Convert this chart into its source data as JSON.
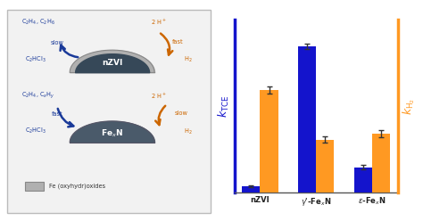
{
  "blue_values": [
    0.04,
    1.0,
    0.17
  ],
  "orange_values": [
    0.7,
    0.36,
    0.4
  ],
  "blue_errors": [
    0.005,
    0.02,
    0.015
  ],
  "orange_errors": [
    0.025,
    0.02,
    0.025
  ],
  "blue_color": "#1414cc",
  "orange_color": "#ff9922",
  "background_color": "#ffffff",
  "box_bg": "#f0f0f0",
  "nzvi_color": "#364858",
  "oxide_color": "#b0b0b0",
  "fexn_color": "#4a5a6a",
  "arrow_blue": "#1a3a99",
  "arrow_orange": "#cc6600",
  "text_blue": "#1a3a99",
  "text_orange": "#cc6600"
}
